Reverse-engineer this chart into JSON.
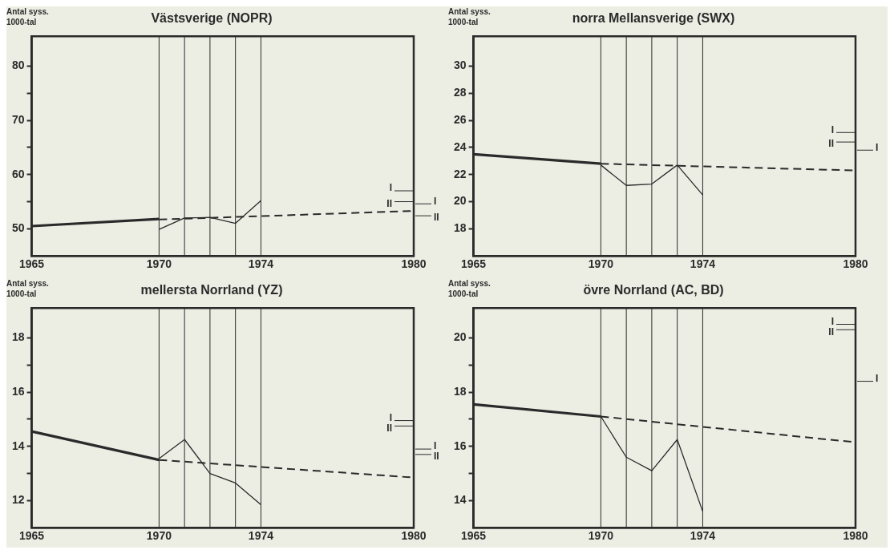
{
  "chart_data": [
    {
      "type": "line",
      "title": "Västsverige (NOPR)",
      "ylabel": "Antal syss.\n1000-tal",
      "xlim": [
        1965,
        1980
      ],
      "xticks": [
        1965,
        1970,
        1974,
        1980
      ],
      "ylim": [
        45,
        85.5
      ],
      "yticks": [
        50,
        {
          "value": 55,
          "label": null
        },
        60,
        {
          "value": 65,
          "label": null
        },
        70,
        {
          "value": 75,
          "label": null
        },
        80
      ],
      "grid": false,
      "legend": false,
      "marker": "none",
      "series": [
        {
          "color": "#2a2a2a",
          "line_style": "solid",
          "x": [
            1965,
            1970
          ],
          "values": [
            50.5,
            51.8
          ]
        },
        {
          "color": "#2a2a2a",
          "line_style": "dashed",
          "x": [
            1970,
            1980
          ],
          "values": [
            51.7,
            53.3
          ]
        },
        {
          "color": "#2a2a2a",
          "line_style": "solid",
          "x": [
            1970,
            1971,
            1972,
            1973,
            1974
          ],
          "values": [
            49.9,
            52.0,
            52.1,
            51.0,
            55.2
          ]
        }
      ],
      "ref_lines": [
        {
          "axis": "x",
          "value": 1970,
          "color": "#2a2a2a"
        },
        {
          "axis": "x",
          "value": 1971,
          "color": "#2a2a2a"
        },
        {
          "axis": "x",
          "value": 1972,
          "color": "#2a2a2a"
        },
        {
          "axis": "x",
          "value": 1973,
          "color": "#2a2a2a"
        },
        {
          "axis": "x",
          "value": 1974,
          "color": "#2a2a2a"
        },
        {
          "axis": "y",
          "value": 57,
          "label": "I",
          "color": "#2a2a2a"
        },
        {
          "axis": "y",
          "value": 55,
          "label": "II",
          "color": "#2a2a2a"
        },
        {
          "axis": "y",
          "value": 54.6,
          "label": "I",
          "color": "#2a2a2a"
        },
        {
          "axis": "y",
          "value": 52.4,
          "label": "II",
          "color": "#2a2a2a"
        }
      ]
    },
    {
      "type": "line",
      "title": "norra Mellansverige (SWX)",
      "ylabel": "Antal syss.\n1000-tal",
      "xlim": [
        1965,
        1980
      ],
      "xticks": [
        1965,
        1970,
        1974,
        1980
      ],
      "ylim": [
        16,
        32.2
      ],
      "yticks": [
        18,
        20,
        22,
        24,
        26,
        28,
        30
      ],
      "grid": false,
      "legend": false,
      "marker": "none",
      "series": [
        {
          "color": "#2a2a2a",
          "line_style": "solid",
          "x": [
            1965,
            1970
          ],
          "values": [
            23.5,
            22.8
          ]
        },
        {
          "color": "#2a2a2a",
          "line_style": "dashed",
          "x": [
            1970,
            1980
          ],
          "values": [
            22.8,
            22.3
          ]
        },
        {
          "color": "#2a2a2a",
          "line_style": "solid",
          "x": [
            1970,
            1971,
            1972,
            1973,
            1974
          ],
          "values": [
            22.7,
            21.2,
            21.3,
            22.7,
            20.5
          ]
        }
      ],
      "ref_lines": [
        {
          "axis": "x",
          "value": 1970,
          "color": "#2a2a2a"
        },
        {
          "axis": "x",
          "value": 1971,
          "color": "#2a2a2a"
        },
        {
          "axis": "x",
          "value": 1972,
          "color": "#2a2a2a"
        },
        {
          "axis": "x",
          "value": 1973,
          "color": "#2a2a2a"
        },
        {
          "axis": "x",
          "value": 1974,
          "color": "#2a2a2a"
        },
        {
          "axis": "y",
          "value": 25.1,
          "label": "I",
          "color": "#2a2a2a"
        },
        {
          "axis": "y",
          "value": 24.4,
          "label": "II",
          "color": "#2a2a2a"
        },
        {
          "axis": "y",
          "value": 23.8,
          "label": "I",
          "color": "#2a2a2a"
        }
      ]
    },
    {
      "type": "line",
      "title": "mellersta Norrland (YZ)",
      "ylabel": "Antal syss.\n1000-tal",
      "xlim": [
        1965,
        1980
      ],
      "xticks": [
        1965,
        1970,
        1974,
        1980
      ],
      "ylim": [
        11,
        19.1
      ],
      "yticks": [
        12,
        {
          "value": 13,
          "label": null
        },
        14,
        {
          "value": 15,
          "label": null
        },
        16,
        {
          "value": 17,
          "label": null
        },
        18
      ],
      "grid": false,
      "legend": false,
      "marker": "none",
      "series": [
        {
          "color": "#2a2a2a",
          "line_style": "solid",
          "x": [
            1965,
            1970
          ],
          "values": [
            14.55,
            13.5
          ]
        },
        {
          "color": "#2a2a2a",
          "line_style": "dashed",
          "x": [
            1970,
            1980
          ],
          "values": [
            13.5,
            12.85
          ]
        },
        {
          "color": "#2a2a2a",
          "line_style": "solid",
          "x": [
            1970,
            1971,
            1972,
            1973,
            1974
          ],
          "values": [
            13.55,
            14.25,
            13.0,
            12.65,
            11.85
          ]
        }
      ],
      "ref_lines": [
        {
          "axis": "x",
          "value": 1970,
          "color": "#2a2a2a"
        },
        {
          "axis": "x",
          "value": 1971,
          "color": "#2a2a2a"
        },
        {
          "axis": "x",
          "value": 1972,
          "color": "#2a2a2a"
        },
        {
          "axis": "x",
          "value": 1973,
          "color": "#2a2a2a"
        },
        {
          "axis": "x",
          "value": 1974,
          "color": "#2a2a2a"
        },
        {
          "axis": "y",
          "value": 14.95,
          "label": "I",
          "color": "#2a2a2a"
        },
        {
          "axis": "y",
          "value": 14.75,
          "label": "II",
          "color": "#2a2a2a"
        },
        {
          "axis": "y",
          "value": 13.9,
          "label": "I",
          "color": "#2a2a2a"
        },
        {
          "axis": "y",
          "value": 13.7,
          "label": "II",
          "color": "#2a2a2a"
        }
      ]
    },
    {
      "type": "line",
      "title": "övre Norrland (AC, BD)",
      "ylabel": "Antal syss.\n1000-tal",
      "xlim": [
        1965,
        1980
      ],
      "xticks": [
        1965,
        1970,
        1974,
        1980
      ],
      "ylim": [
        13,
        21.1
      ],
      "yticks": [
        14,
        {
          "value": 15,
          "label": null
        },
        16,
        {
          "value": 17,
          "label": null
        },
        18,
        {
          "value": 19,
          "label": null
        },
        20
      ],
      "grid": false,
      "legend": false,
      "marker": "none",
      "series": [
        {
          "color": "#2a2a2a",
          "line_style": "solid",
          "x": [
            1965,
            1970
          ],
          "values": [
            17.55,
            17.1
          ]
        },
        {
          "color": "#2a2a2a",
          "line_style": "dashed",
          "x": [
            1970,
            1980
          ],
          "values": [
            17.1,
            16.15
          ]
        },
        {
          "color": "#2a2a2a",
          "line_style": "solid",
          "x": [
            1970,
            1971,
            1972,
            1973,
            1974
          ],
          "values": [
            17.1,
            15.6,
            15.1,
            16.25,
            13.6
          ]
        }
      ],
      "ref_lines": [
        {
          "axis": "x",
          "value": 1970,
          "color": "#2a2a2a"
        },
        {
          "axis": "x",
          "value": 1971,
          "color": "#2a2a2a"
        },
        {
          "axis": "x",
          "value": 1972,
          "color": "#2a2a2a"
        },
        {
          "axis": "x",
          "value": 1973,
          "color": "#2a2a2a"
        },
        {
          "axis": "x",
          "value": 1974,
          "color": "#2a2a2a"
        },
        {
          "axis": "y",
          "value": 20.5,
          "label": "I",
          "color": "#2a2a2a"
        },
        {
          "axis": "y",
          "value": 20.3,
          "label": "II",
          "color": "#2a2a2a"
        },
        {
          "axis": "y",
          "value": 18.4,
          "label": "I",
          "color": "#2a2a2a"
        }
      ]
    }
  ]
}
